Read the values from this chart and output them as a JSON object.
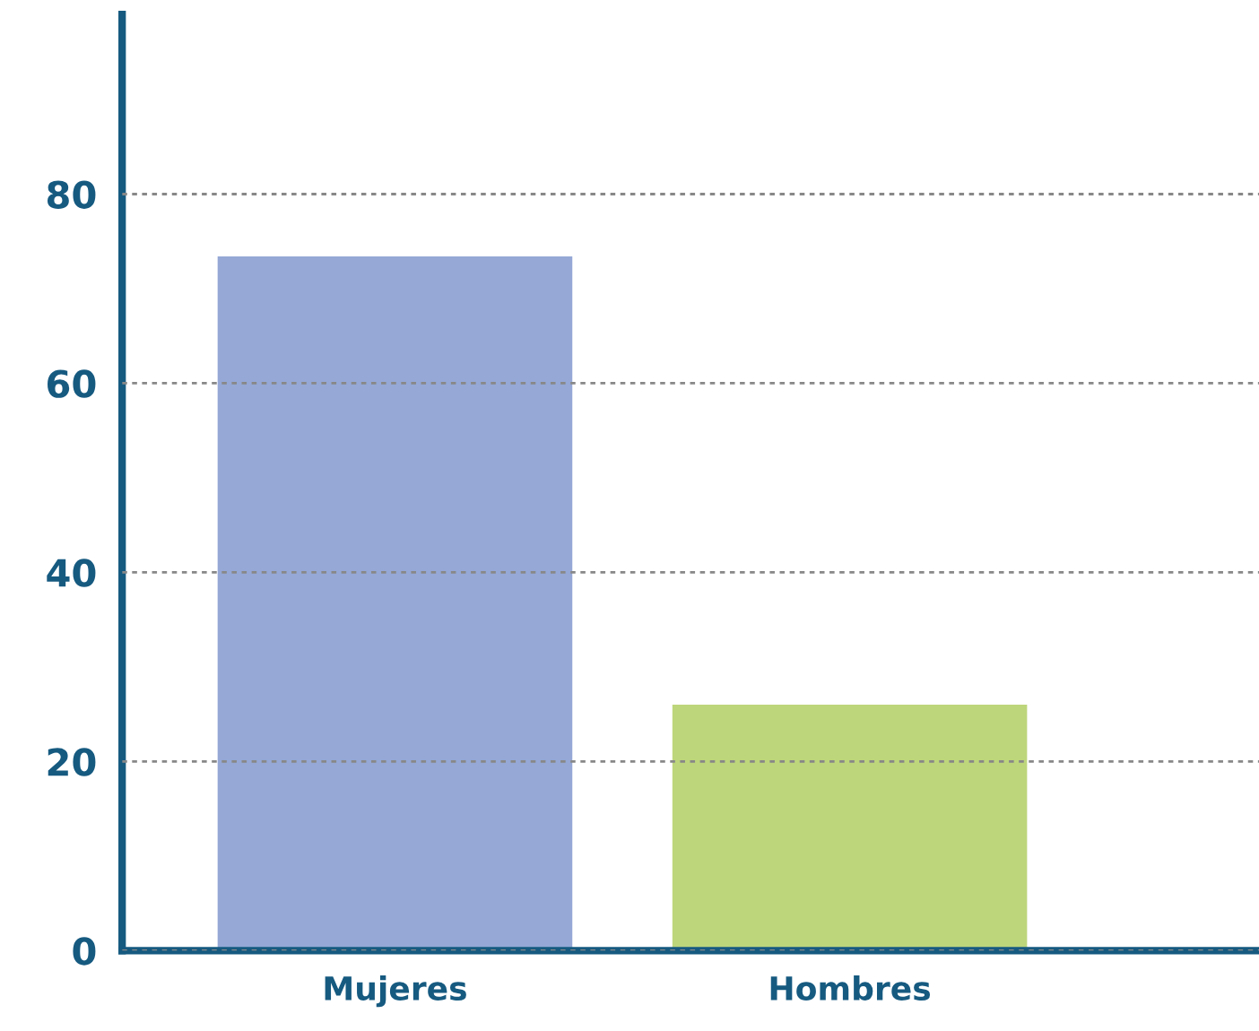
{
  "chart_data": {
    "type": "bar",
    "categories": [
      "Mujeres",
      "Hombres"
    ],
    "values": [
      73.4,
      26.0
    ],
    "colors": [
      "#95a8d6",
      "#bdd67b"
    ],
    "ylim": [
      0,
      99
    ],
    "yticks": [
      0,
      20,
      40,
      60,
      80
    ],
    "grid": "y",
    "legend": false
  }
}
